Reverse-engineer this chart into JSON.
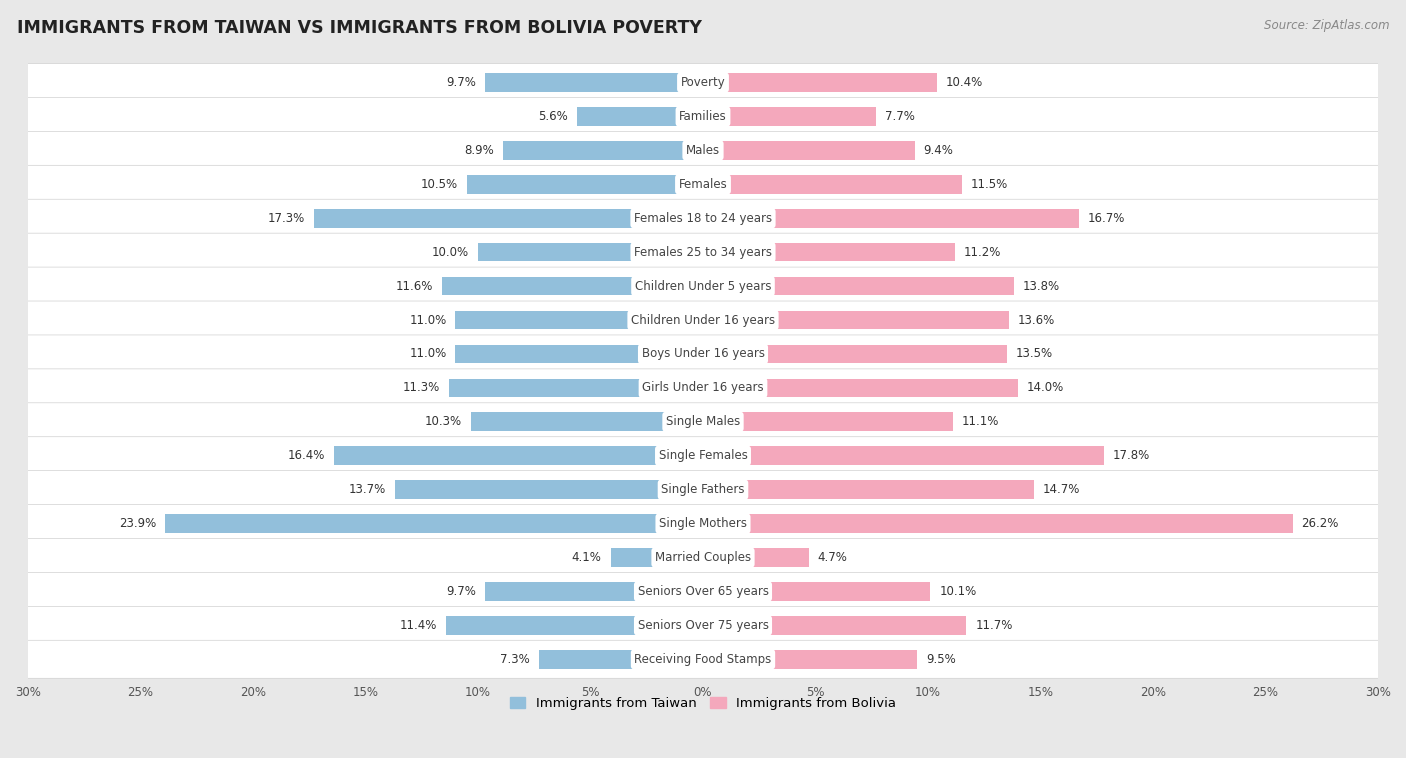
{
  "title": "IMMIGRANTS FROM TAIWAN VS IMMIGRANTS FROM BOLIVIA POVERTY",
  "source": "Source: ZipAtlas.com",
  "categories": [
    "Poverty",
    "Families",
    "Males",
    "Females",
    "Females 18 to 24 years",
    "Females 25 to 34 years",
    "Children Under 5 years",
    "Children Under 16 years",
    "Boys Under 16 years",
    "Girls Under 16 years",
    "Single Males",
    "Single Females",
    "Single Fathers",
    "Single Mothers",
    "Married Couples",
    "Seniors Over 65 years",
    "Seniors Over 75 years",
    "Receiving Food Stamps"
  ],
  "taiwan_values": [
    9.7,
    5.6,
    8.9,
    10.5,
    17.3,
    10.0,
    11.6,
    11.0,
    11.0,
    11.3,
    10.3,
    16.4,
    13.7,
    23.9,
    4.1,
    9.7,
    11.4,
    7.3
  ],
  "bolivia_values": [
    10.4,
    7.7,
    9.4,
    11.5,
    16.7,
    11.2,
    13.8,
    13.6,
    13.5,
    14.0,
    11.1,
    17.8,
    14.7,
    26.2,
    4.7,
    10.1,
    11.7,
    9.5
  ],
  "taiwan_color": "#92bfdb",
  "bolivia_color": "#f4a8bc",
  "row_color_odd": "#ffffff",
  "row_color_even": "#e8e8e8",
  "background_color": "#e8e8e8",
  "label_bg_color": "#ffffff",
  "label_text_color": "#444444",
  "value_text_color": "#333333",
  "axis_max": 30.0,
  "title_fontsize": 12.5,
  "label_fontsize": 8.5,
  "value_fontsize": 8.5,
  "source_fontsize": 8.5
}
